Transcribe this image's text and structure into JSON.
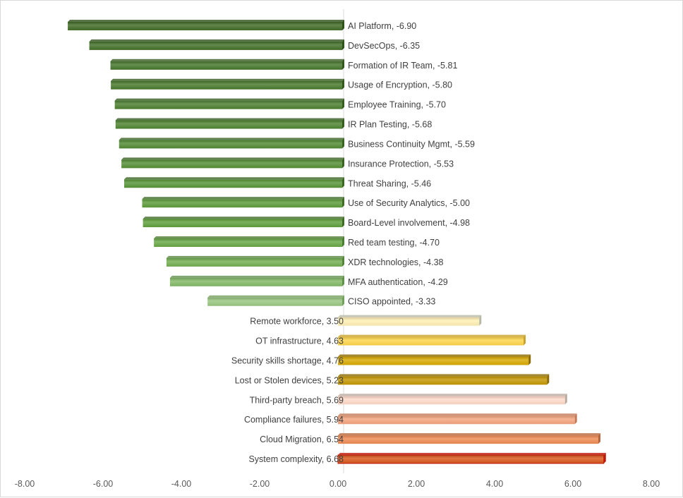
{
  "chart_data": {
    "type": "bar",
    "orientation": "horizontal",
    "title": "",
    "xlabel": "",
    "ylabel": "",
    "xlim": [
      -8,
      8
    ],
    "x_ticks": [
      "-8.00",
      "-6.00",
      "-4.00",
      "-2.00",
      "0.00",
      "2.00",
      "4.00",
      "6.00",
      "8.00"
    ],
    "x_tick_values": [
      -8,
      -6,
      -4,
      -2,
      0,
      2,
      4,
      6,
      8
    ],
    "grid": false,
    "legend": "none",
    "label_format": "{category}, {value}",
    "categories": [
      "AI Platform",
      "DevSecOps",
      "Formation of IR Team",
      "Usage of Encryption",
      "Employee Training",
      "IR Plan Testing",
      "Business Continuity Mgmt",
      "Insurance Protection",
      "Threat Sharing",
      "Use of Security Analytics",
      "Board-Level involvement",
      "Red team testing",
      "XDR technologies",
      "MFA authentication",
      "CISO appointed",
      "Remote workforce",
      "OT infrastructure",
      "Security skills shortage",
      "Lost or Stolen devices",
      "Third-party breach",
      "Compliance failures",
      "Cloud Migration",
      "System complexity"
    ],
    "values": [
      -6.9,
      -6.35,
      -5.81,
      -5.8,
      -5.7,
      -5.68,
      -5.59,
      -5.53,
      -5.46,
      -5.0,
      -4.98,
      -4.7,
      -4.38,
      -4.29,
      -3.33,
      3.5,
      4.63,
      4.76,
      5.23,
      5.69,
      5.94,
      6.54,
      6.68
    ],
    "value_labels": [
      "-6.90",
      "-6.35",
      "-5.81",
      "-5.80",
      "-5.70",
      "-5.68",
      "-5.59",
      "-5.53",
      "-5.46",
      "-5.00",
      "-4.98",
      "-4.70",
      "-4.38",
      "-4.29",
      "-3.33",
      "3.50",
      "4.63",
      "4.76",
      "5.23",
      "5.69",
      "5.94",
      "6.54",
      "6.68"
    ],
    "colors": [
      "#3f6b25",
      "#426f27",
      "#45752a",
      "#48792c",
      "#4b7e2e",
      "#4e8430",
      "#518a32",
      "#548f34",
      "#579536",
      "#5c9b3a",
      "#5fa03c",
      "#68a845",
      "#73ae51",
      "#83b965",
      "#98c67f",
      "#fff0b3",
      "#ffd54a",
      "#d9a800",
      "#c49600",
      "#ffd9c8",
      "#f4a37d",
      "#ef8a52",
      "#d9561a"
    ],
    "edge_colors": [
      "#2f521b",
      "#2f521b",
      "#33571d",
      "#33571d",
      "#365c20",
      "#365c20",
      "#3a6223",
      "#3a6223",
      "#3d6725",
      "#416c28",
      "#416c28",
      "#4c7d34",
      "#55843c",
      "#62914c",
      "#74a05d",
      "#b8b8a8",
      "#c9a22a",
      "#8c6a00",
      "#8c6a00",
      "#b9aaa0",
      "#c47a58",
      "#b8653a",
      "#c0180c"
    ]
  }
}
